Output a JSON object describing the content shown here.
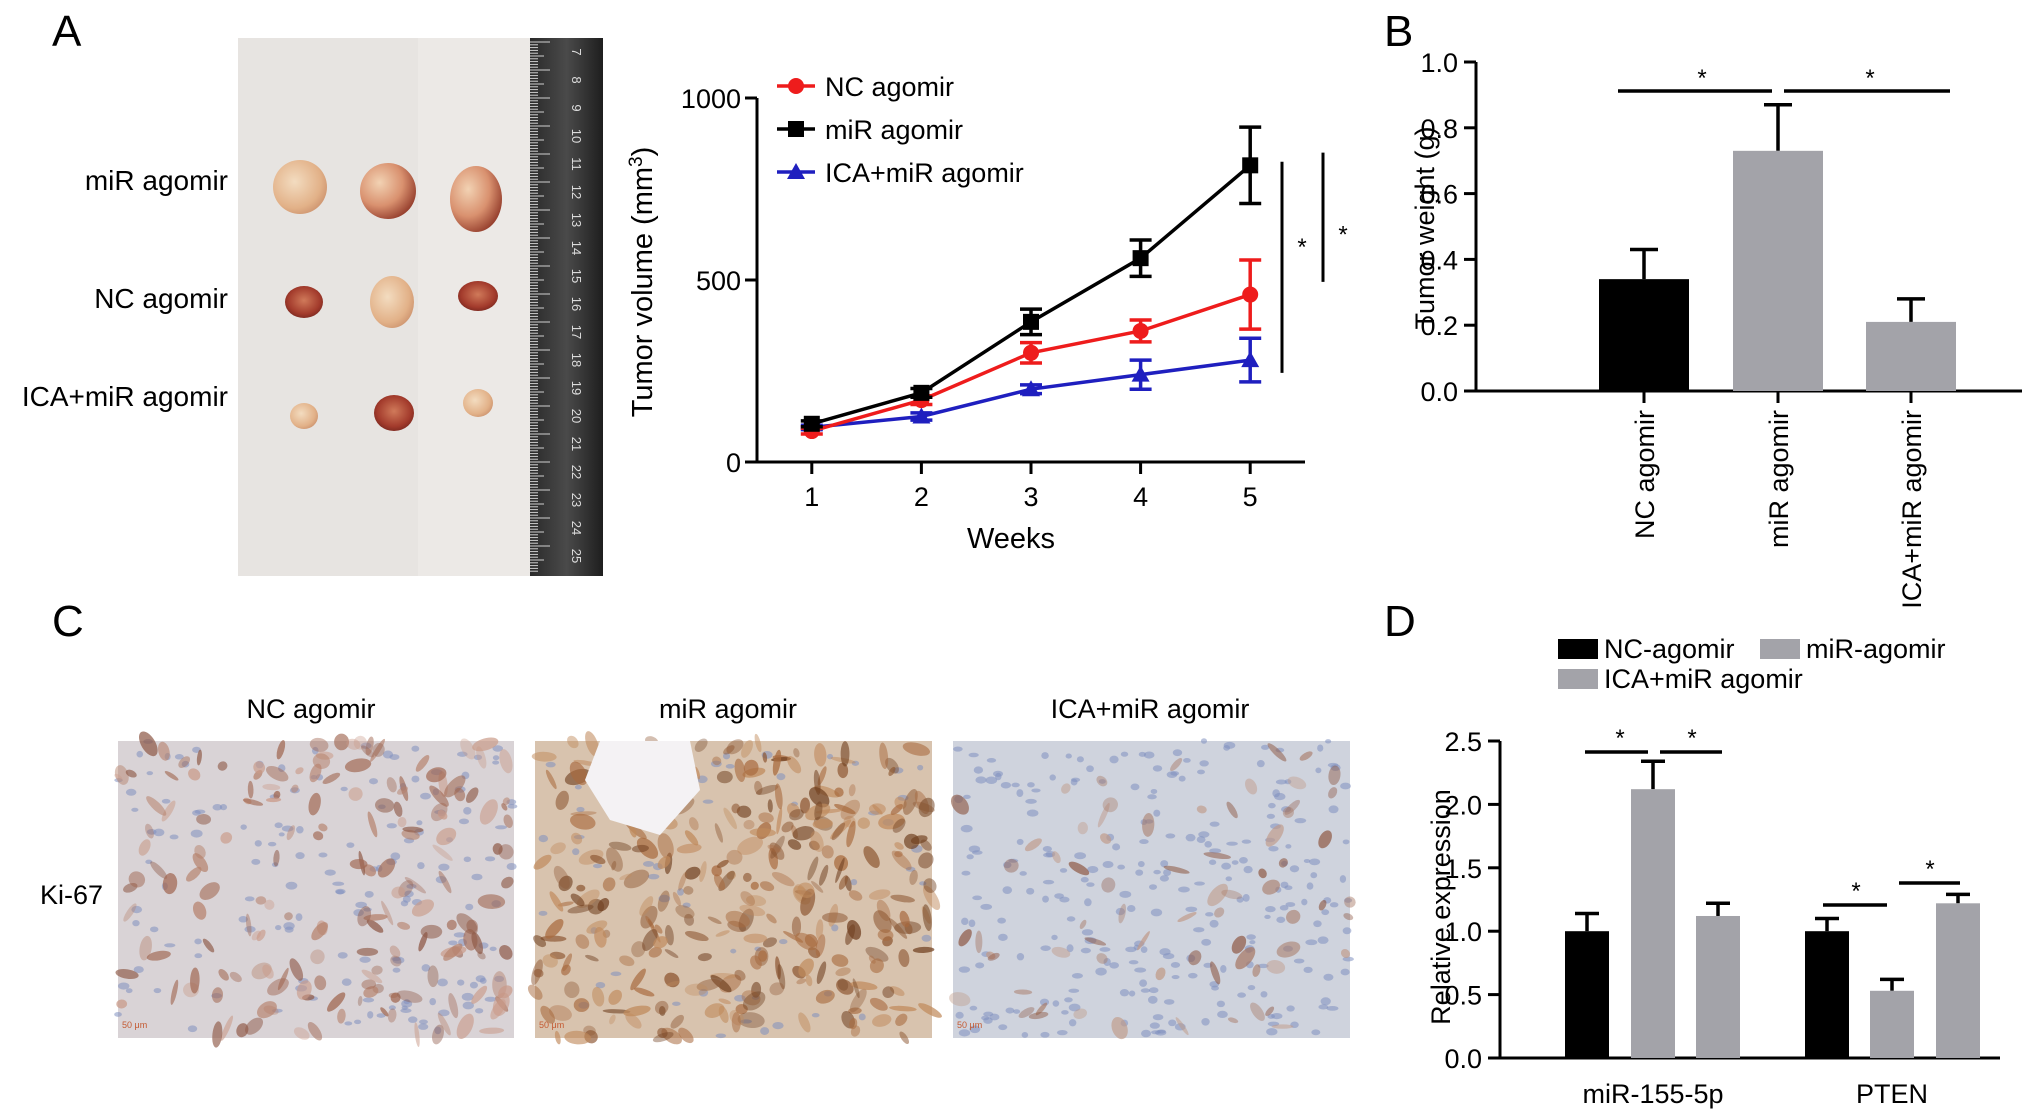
{
  "panels": {
    "a": {
      "letter": "A",
      "photo_rows": [
        "miR agomir",
        "NC agomir",
        "ICA+miR agomir"
      ],
      "ruler_numbers": [
        "7",
        "8",
        "9",
        "10",
        "11",
        "12",
        "13",
        "14",
        "15",
        "16",
        "17",
        "18",
        "19",
        "20",
        "21",
        "22",
        "23",
        "24",
        "25"
      ]
    },
    "b": {
      "letter": "B"
    },
    "c": {
      "letter": "C",
      "columns": [
        "NC agomir",
        "miR agomir",
        "ICA+miR agomir"
      ],
      "row_label": "Ki-67",
      "scale_text": "50 μm"
    },
    "d": {
      "letter": "D"
    }
  },
  "chart_data": [
    {
      "panel": "A",
      "type": "line",
      "xlabel": "Weeks",
      "ylabel": "Tumor volume (mm3)",
      "x": [
        1,
        2,
        3,
        4,
        5
      ],
      "xlim": [
        0.5,
        5.5
      ],
      "ylim": [
        0,
        1000
      ],
      "yticks": [
        0,
        500,
        1000
      ],
      "legend_position": "top-left",
      "series": [
        {
          "name": "NC agomir",
          "color": "#ee1c1c",
          "marker": "circle",
          "values": [
            85,
            170,
            300,
            360,
            460
          ],
          "errors": [
            8,
            12,
            28,
            30,
            95
          ]
        },
        {
          "name": "miR agomir",
          "color": "#000000",
          "marker": "square",
          "values": [
            105,
            190,
            385,
            560,
            815
          ],
          "errors": [
            8,
            12,
            35,
            50,
            105
          ]
        },
        {
          "name": "ICA+miR agomir",
          "color": "#1f1fbf",
          "marker": "triangle",
          "values": [
            95,
            125,
            200,
            240,
            280
          ],
          "errors": [
            6,
            10,
            12,
            40,
            60
          ]
        }
      ],
      "significance": [
        "*",
        "*"
      ]
    },
    {
      "panel": "B",
      "type": "bar",
      "ylabel": "Tumor weight (g)",
      "categories": [
        "NC agomir",
        "miR agomir",
        "ICA+miR agomir"
      ],
      "values": [
        0.34,
        0.73,
        0.21
      ],
      "errors": [
        0.09,
        0.14,
        0.07
      ],
      "colors": [
        "#000000",
        "#a3a3a9",
        "#a3a3a9"
      ],
      "ylim": [
        0,
        1.0
      ],
      "yticks": [
        "0.0",
        "0.2",
        "0.4",
        "0.6",
        "0.8",
        "1.0"
      ],
      "significance": [
        "*",
        "*"
      ]
    },
    {
      "panel": "D",
      "type": "bar",
      "ylabel": "Relative expression",
      "categories": [
        "miR-155-5p",
        "PTEN"
      ],
      "series": [
        {
          "name": "NC-agomir",
          "color": "#000000",
          "values": [
            1.0,
            1.0
          ],
          "errors": [
            0.14,
            0.1
          ]
        },
        {
          "name": "miR-agomir",
          "color": "#a3a3a9",
          "values": [
            2.12,
            0.53
          ],
          "errors": [
            0.22,
            0.09
          ]
        },
        {
          "name": "ICA+miR agomir",
          "color": "#a3a3a9",
          "values": [
            1.12,
            1.22
          ],
          "errors": [
            0.1,
            0.07
          ]
        }
      ],
      "ylim": [
        0,
        2.5
      ],
      "yticks": [
        "0.0",
        "0.5",
        "1.0",
        "1.5",
        "2.0",
        "2.5"
      ],
      "legend_position": "top",
      "significance": [
        "*",
        "*",
        "*",
        "*"
      ]
    }
  ]
}
